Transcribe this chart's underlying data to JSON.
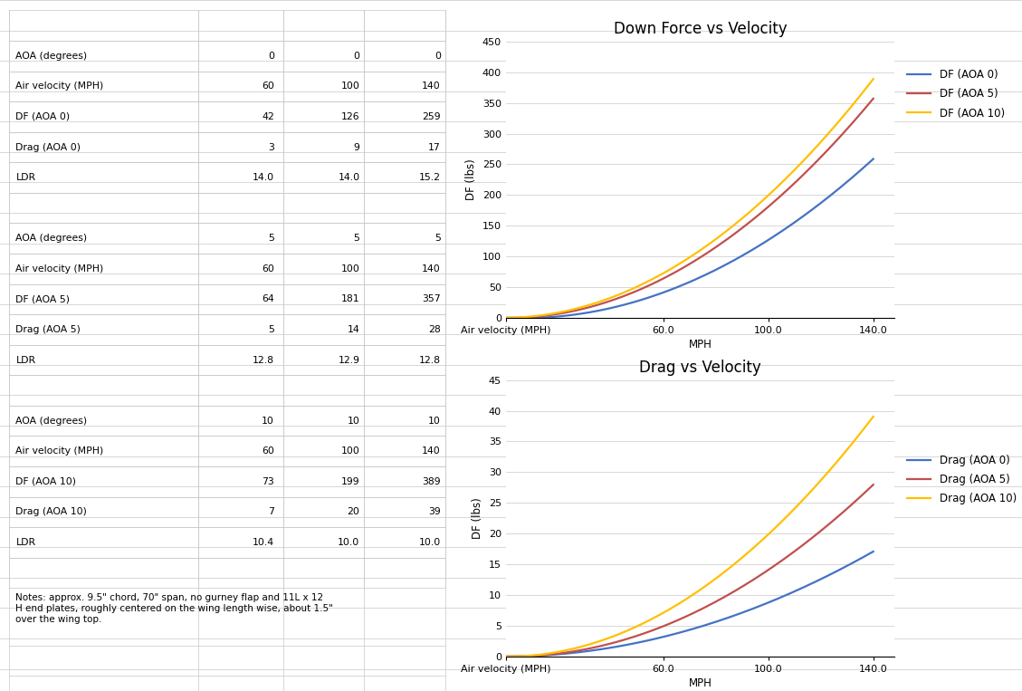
{
  "velocity_points": [
    0,
    60,
    100,
    140
  ],
  "df_aoa0": [
    0,
    42,
    126,
    259
  ],
  "df_aoa5": [
    0,
    64,
    181,
    357
  ],
  "df_aoa10": [
    0,
    73,
    199,
    389
  ],
  "drag_aoa0": [
    0,
    3,
    9,
    17
  ],
  "drag_aoa5": [
    0,
    5,
    14,
    28
  ],
  "drag_aoa10": [
    0,
    7,
    20,
    39
  ],
  "color_aoa0": "#4472C4",
  "color_aoa5": "#C0504D",
  "color_aoa10": "#FFC000",
  "df_title": "Down Force vs Velocity",
  "drag_title": "Drag vs Velocity",
  "x_label_first": "Air velocity (MPH)",
  "x_label_second": "MPH",
  "ylabel": "DF (lbs)",
  "df_ylim": [
    0,
    450
  ],
  "df_yticks": [
    0,
    50,
    100,
    150,
    200,
    250,
    300,
    350,
    400,
    450
  ],
  "drag_ylim": [
    0,
    45
  ],
  "drag_yticks": [
    0,
    5,
    10,
    15,
    20,
    25,
    30,
    35,
    40,
    45
  ],
  "xtick_vals": [
    60.0,
    100.0,
    140.0
  ],
  "legend_df": [
    "DF (AOA 0)",
    "DF (AOA 5)",
    "DF (AOA 10)"
  ],
  "legend_drag": [
    "Drag (AOA 0)",
    "Drag (AOA 5)",
    "Drag (AOA 10)"
  ],
  "table_sections": [
    [
      [
        "AOA (degrees)",
        "0",
        "0",
        "0"
      ],
      [
        "Air velocity (MPH)",
        "60",
        "100",
        "140"
      ],
      [
        "DF (AOA 0)",
        "42",
        "126",
        "259"
      ],
      [
        "Drag (AOA 0)",
        "3",
        "9",
        "17"
      ],
      [
        "LDR",
        "14.0",
        "14.0",
        "15.2"
      ]
    ],
    [
      [
        "AOA (degrees)",
        "5",
        "5",
        "5"
      ],
      [
        "Air velocity (MPH)",
        "60",
        "100",
        "140"
      ],
      [
        "DF (AOA 5)",
        "64",
        "181",
        "357"
      ],
      [
        "Drag (AOA 5)",
        "5",
        "14",
        "28"
      ],
      [
        "LDR",
        "12.8",
        "12.9",
        "12.8"
      ]
    ],
    [
      [
        "AOA (degrees)",
        "10",
        "10",
        "10"
      ],
      [
        "Air velocity (MPH)",
        "60",
        "100",
        "140"
      ],
      [
        "DF (AOA 10)",
        "73",
        "199",
        "389"
      ],
      [
        "Drag (AOA 10)",
        "7",
        "20",
        "39"
      ],
      [
        "LDR",
        "10.4",
        "10.0",
        "10.0"
      ]
    ]
  ],
  "notes": "Notes: approx. 9.5\" chord, 70\" span, no gurney flap and 11L x 12\nH end plates, roughly centered on the wing length wise, about 1.5\"\nover the wing top.",
  "bg_color": "#FFFFFF",
  "grid_color": "#C8C8C8",
  "table_line_color": "#C8C8C8",
  "title_fontsize": 12,
  "axis_fontsize": 8.5,
  "tick_fontsize": 8,
  "legend_fontsize": 8.5,
  "table_fontsize": 7.8
}
